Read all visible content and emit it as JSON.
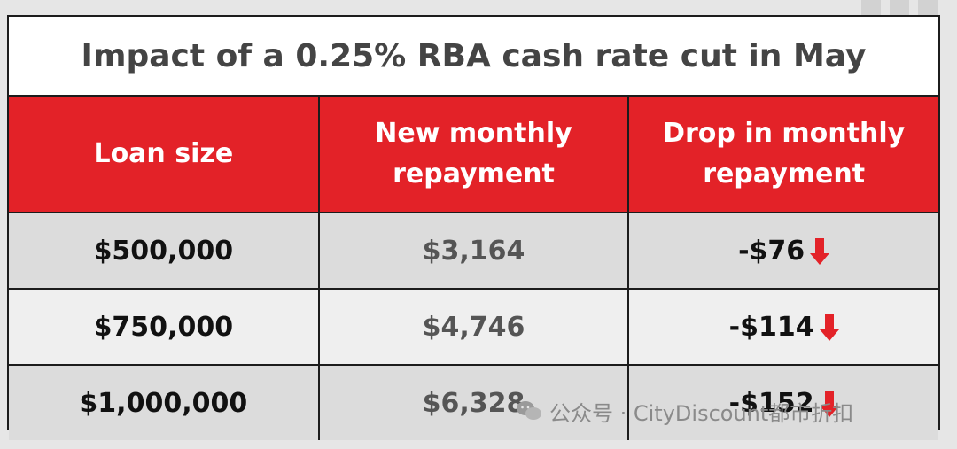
{
  "title": "Impact of a 0.25% RBA cash rate cut in May",
  "table": {
    "headers": [
      "Loan size",
      "New monthly repayment",
      "Drop in monthly repayment"
    ],
    "rows": [
      {
        "loan": "$500,000",
        "repayment": "$3,164",
        "drop": "-$76"
      },
      {
        "loan": "$750,000",
        "repayment": "$4,746",
        "drop": "-$114"
      },
      {
        "loan": "$1,000,000",
        "repayment": "$6,328",
        "drop": "-$152"
      }
    ]
  },
  "watermark": {
    "text": "公众号 · CityDiscount都市折扣",
    "icon": "wechat-logo-icon"
  },
  "colors": {
    "header_bg": "#e32228",
    "arrow": "#e32228",
    "border": "#1c1c1c"
  },
  "icons": {
    "drop": "arrow-down-icon"
  }
}
